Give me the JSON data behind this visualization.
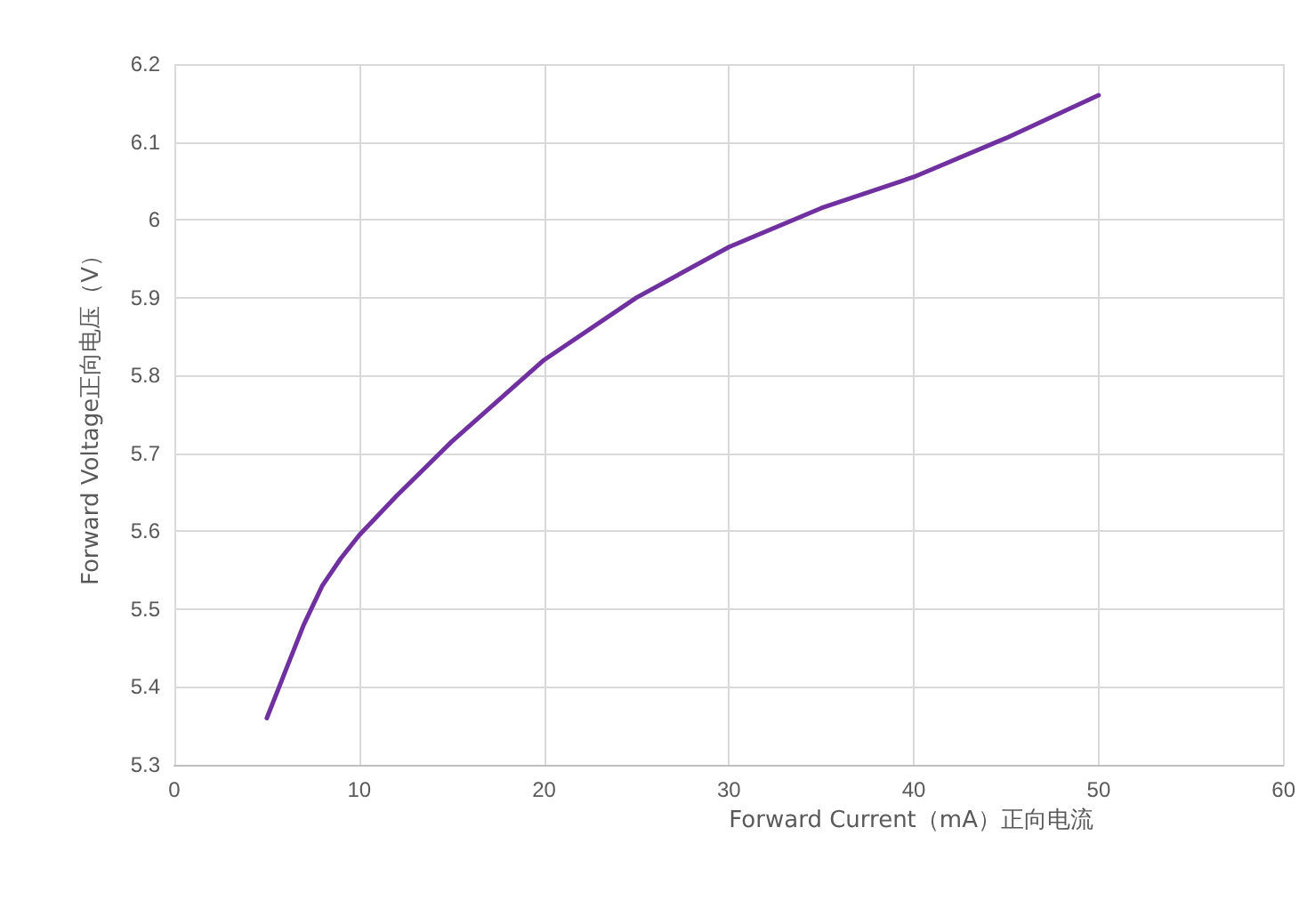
{
  "chart_data": {
    "type": "line",
    "xlabel": "Forward Current（mA）正向电流",
    "ylabel": "Forward Voltage正向电压（V）",
    "x": [
      5,
      6,
      7,
      8,
      9,
      10,
      12,
      15,
      20,
      25,
      30,
      35,
      40,
      45,
      50
    ],
    "series": [
      {
        "color": "#7030a0",
        "values": [
          5.36,
          5.42,
          5.48,
          5.53,
          5.565,
          5.595,
          5.645,
          5.715,
          5.82,
          5.9,
          5.965,
          6.015,
          6.055,
          6.105,
          6.16
        ]
      }
    ],
    "xlim": [
      0,
      60
    ],
    "xticks": [
      0,
      10,
      20,
      30,
      40,
      50,
      60
    ],
    "ylim": [
      5.3,
      6.2
    ],
    "yticks": [
      5.3,
      5.4,
      5.5,
      5.6,
      5.7,
      5.8,
      5.9,
      6,
      6.1,
      6.2
    ],
    "grid": true,
    "marker": "none",
    "line_style": "solid"
  }
}
